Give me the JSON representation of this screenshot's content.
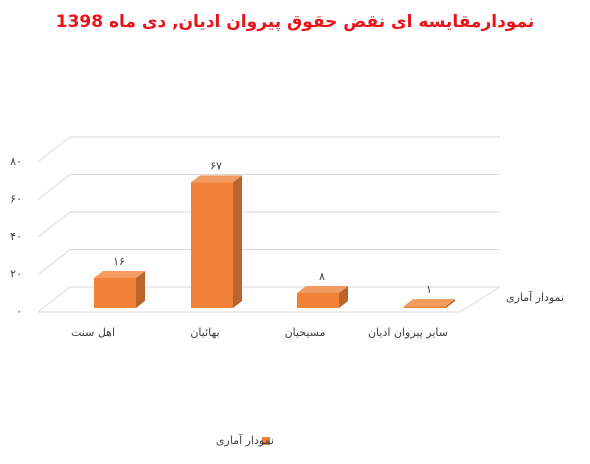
{
  "chart_data": {
    "type": "bar3d",
    "title": "نمودارمقایسه ای نقض حقوق پیروان ادیان, دی ماه 1398",
    "categories": [
      "اهل سنت",
      "بهائیان",
      "مسیحیان",
      "سایر پیروان ادیان"
    ],
    "series": [
      {
        "name": "نمودار آماری",
        "color": "#f0823a",
        "values": [
          16,
          67,
          8,
          1
        ],
        "value_labels": [
          "۱۶",
          "۶۷",
          "۸",
          "۱"
        ]
      }
    ],
    "ylim": [
      0,
      80
    ],
    "yticks": [
      {
        "value": 0,
        "label": "۰"
      },
      {
        "value": 20,
        "label": "۲۰"
      },
      {
        "value": 40,
        "label": "۴۰"
      },
      {
        "value": 60,
        "label": "۶۰"
      },
      {
        "value": 80,
        "label": "۸۰"
      }
    ],
    "grid": true,
    "legend": "bottom"
  }
}
